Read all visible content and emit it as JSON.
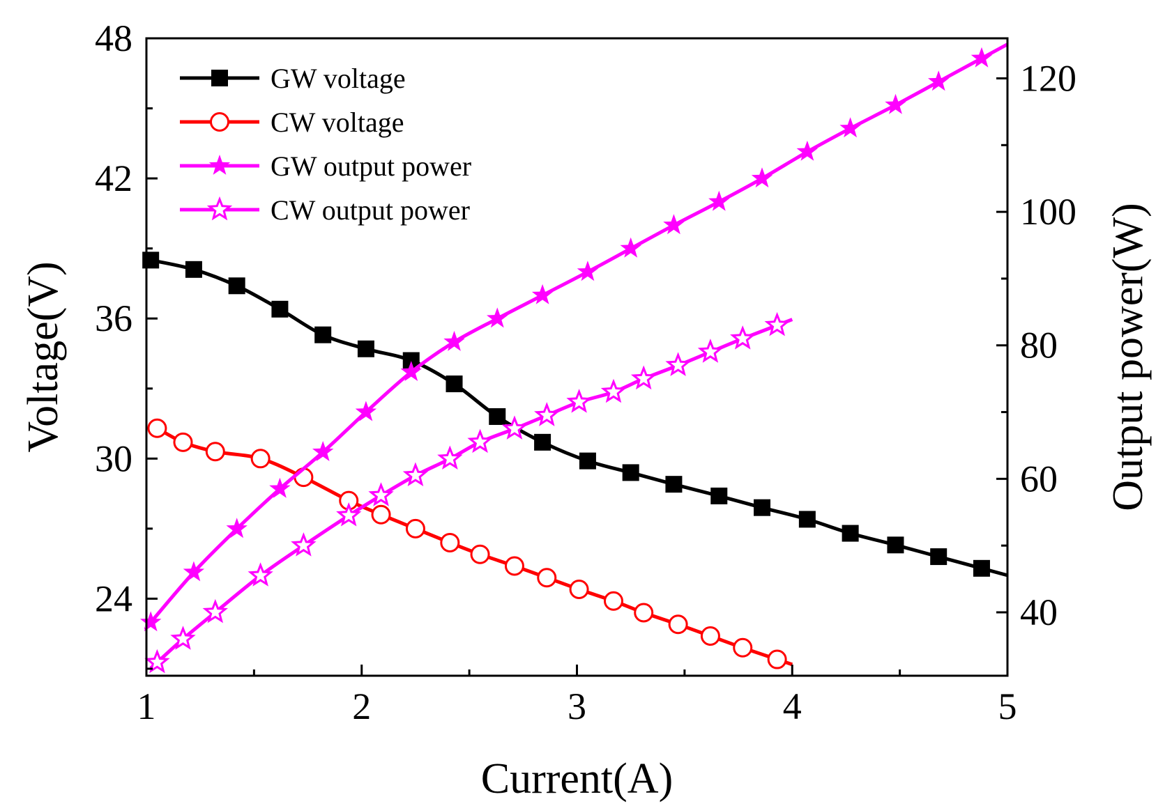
{
  "chart_data": {
    "type": "line",
    "title": "",
    "xlabel": "Current(A)",
    "ylabel": "Voltage(V)",
    "y2label": "Output power(W)",
    "xlim": [
      1,
      5
    ],
    "ylim": [
      20.7,
      48
    ],
    "y2lim": [
      30.5,
      126
    ],
    "xticks": [
      1,
      2,
      3,
      4,
      5
    ],
    "yticks": [
      24,
      30,
      36,
      42,
      48
    ],
    "y2ticks": [
      40,
      60,
      80,
      100,
      120
    ],
    "grid": false,
    "legend_position": "top-left",
    "series": [
      {
        "name": "GW voltage",
        "axis": "left",
        "color": "#000000",
        "marker": "filled-square",
        "x": [
          1.02,
          1.22,
          1.42,
          1.62,
          1.82,
          2.02,
          2.23,
          2.43,
          2.63,
          2.84,
          3.05,
          3.25,
          3.45,
          3.66,
          3.86,
          4.07,
          4.27,
          4.48,
          4.68,
          4.88
        ],
        "y": [
          38.5,
          38.1,
          37.4,
          36.4,
          35.3,
          34.7,
          34.2,
          33.2,
          31.8,
          30.7,
          29.9,
          29.4,
          28.9,
          28.4,
          27.9,
          27.4,
          26.8,
          26.3,
          25.8,
          25.3
        ]
      },
      {
        "name": "CW voltage",
        "axis": "left",
        "color": "#ff0000",
        "marker": "open-circle",
        "x": [
          1.05,
          1.17,
          1.32,
          1.53,
          1.73,
          1.94,
          2.09,
          2.25,
          2.41,
          2.55,
          2.71,
          2.86,
          3.01,
          3.17,
          3.31,
          3.47,
          3.62,
          3.77,
          3.93
        ],
        "y": [
          31.3,
          30.7,
          30.3,
          30.0,
          29.2,
          28.2,
          27.6,
          27.0,
          26.4,
          25.9,
          25.4,
          24.9,
          24.4,
          23.9,
          23.4,
          22.9,
          22.4,
          21.9,
          21.4
        ]
      },
      {
        "name": "GW output power",
        "axis": "right",
        "color": "#ff00ff",
        "marker": "filled-star",
        "x": [
          1.02,
          1.22,
          1.42,
          1.62,
          1.82,
          2.02,
          2.23,
          2.43,
          2.63,
          2.84,
          3.05,
          3.25,
          3.45,
          3.66,
          3.86,
          4.07,
          4.27,
          4.48,
          4.68,
          4.88
        ],
        "y": [
          38.5,
          46.0,
          52.5,
          58.5,
          64.0,
          70.0,
          76.0,
          80.5,
          84.0,
          87.5,
          91.0,
          94.5,
          98.0,
          101.5,
          105.0,
          109.0,
          112.5,
          116.0,
          119.5,
          123.0
        ]
      },
      {
        "name": "CW output power",
        "axis": "right",
        "color": "#ff00ff",
        "marker": "open-star",
        "x": [
          1.05,
          1.17,
          1.32,
          1.53,
          1.73,
          1.94,
          2.09,
          2.25,
          2.41,
          2.55,
          2.71,
          2.86,
          3.01,
          3.17,
          3.31,
          3.47,
          3.62,
          3.77,
          3.93
        ],
        "y": [
          32.5,
          36.0,
          40.0,
          45.5,
          50.0,
          54.5,
          57.5,
          60.5,
          63.0,
          65.5,
          67.5,
          69.5,
          71.5,
          73.0,
          75.0,
          77.0,
          79.0,
          81.0,
          83.0
        ]
      }
    ]
  }
}
